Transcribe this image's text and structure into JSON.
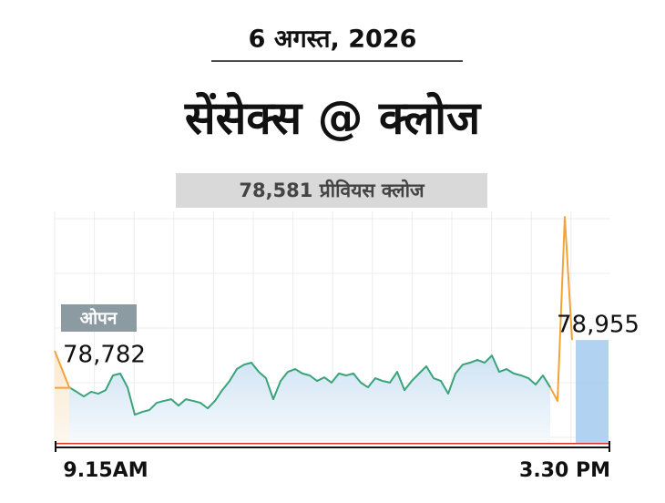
{
  "chart_data": {
    "type": "line",
    "date": "6 अगस्त, 2026",
    "title": "सेंसेक्स @ क्लोज",
    "previous_close": {
      "value": 78581,
      "value_label": "78,581",
      "label": "प्रीवियस क्लोज"
    },
    "open": {
      "value": 78782,
      "value_label": "78,782",
      "label": "ओपन"
    },
    "close": {
      "value": 78955,
      "value_label": "78,955",
      "color": "#a9cdee"
    },
    "categories": [
      null,
      null,
      null,
      null,
      null,
      null,
      null,
      "9.15AM",
      null,
      null,
      null,
      null,
      null,
      null,
      null,
      null,
      null,
      null,
      null,
      null,
      null,
      null,
      null,
      null,
      null,
      null,
      null,
      null,
      null,
      null,
      null,
      null,
      null,
      null,
      null,
      null,
      null,
      null,
      null,
      null,
      null,
      null,
      null,
      null,
      null,
      null,
      null,
      null,
      null,
      null,
      null,
      null,
      null,
      null,
      null,
      null,
      null,
      null,
      null,
      null,
      null,
      null,
      null,
      null,
      null,
      null,
      null,
      null,
      null,
      null,
      "3.30 PM",
      null
    ],
    "ylim": [
      78580,
      79400
    ],
    "series": [
      {
        "color": "#f2a43a",
        "values": [
          78916,
          78850,
          78784,
          null,
          null,
          null,
          null,
          null,
          null,
          null,
          null,
          null,
          null,
          null,
          null,
          null,
          null,
          null,
          null,
          null,
          null,
          null,
          null,
          null,
          null,
          null,
          null,
          null,
          null,
          null,
          null,
          null,
          null,
          null,
          null,
          null,
          null,
          null,
          null,
          null,
          null,
          null,
          null,
          null,
          null,
          null,
          null,
          null,
          null,
          null,
          null,
          null,
          null,
          null,
          null,
          null,
          null,
          null,
          null,
          null,
          null,
          null,
          null,
          null,
          null,
          null,
          null,
          null,
          null,
          null,
          null,
          null
        ]
      },
      {
        "color": "#3aa37a",
        "values": [
          null,
          null,
          78784,
          78768,
          78751,
          78768,
          78761,
          78774,
          78827,
          78834,
          78784,
          78685,
          78695,
          78702,
          78728,
          78735,
          78741,
          78718,
          78741,
          78735,
          78728,
          78708,
          78735,
          78774,
          78807,
          78850,
          78866,
          78873,
          78840,
          78817,
          78741,
          78807,
          78840,
          78850,
          78834,
          78827,
          78807,
          78820,
          78801,
          78834,
          78827,
          78834,
          78801,
          78784,
          78817,
          78807,
          78801,
          78840,
          78774,
          78807,
          78834,
          78860,
          78817,
          78807,
          78761,
          78834,
          78866,
          78873,
          78883,
          78873,
          78899,
          78840,
          78850,
          78834,
          78827,
          78817,
          78794,
          78827,
          78784,
          null,
          null,
          null
        ]
      },
      {
        "color": "#f2a43a",
        "values": [
          null,
          null,
          null,
          null,
          null,
          null,
          null,
          null,
          null,
          null,
          null,
          null,
          null,
          null,
          null,
          null,
          null,
          null,
          null,
          null,
          null,
          null,
          null,
          null,
          null,
          null,
          null,
          null,
          null,
          null,
          null,
          null,
          null,
          null,
          null,
          null,
          null,
          null,
          null,
          null,
          null,
          null,
          null,
          null,
          null,
          null,
          null,
          null,
          null,
          null,
          null,
          null,
          null,
          null,
          null,
          null,
          null,
          null,
          null,
          null,
          null,
          null,
          null,
          null,
          null,
          null,
          null,
          null,
          78784,
          78735,
          79400,
          78955
        ]
      }
    ]
  }
}
